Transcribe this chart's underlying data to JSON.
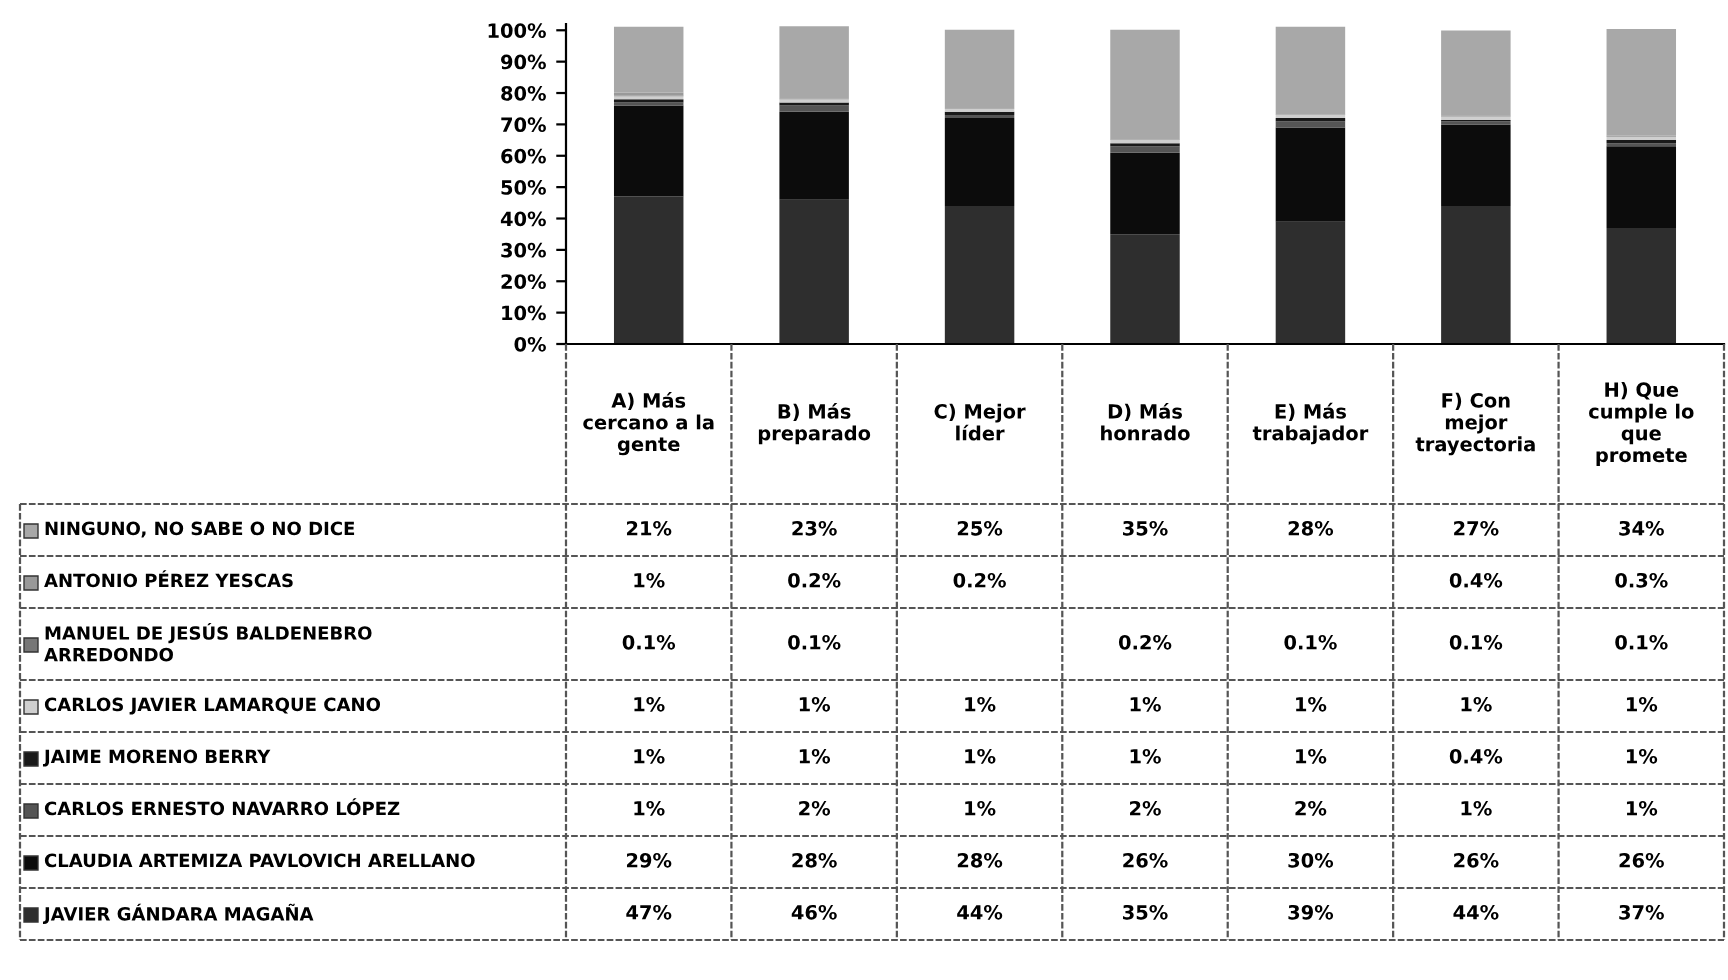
{
  "chart_data": {
    "type": "bar",
    "stacked": true,
    "categories": [
      "A) Más\ncercano a la\ngente",
      "B) Más\npreparado",
      "C) Mejor\nlíder",
      "D) Más\nhonrado",
      "E) Más\ntrabajador",
      "F) Con\nmejor\ntrayectoria",
      "H) Que\ncumple lo\nque\npromete"
    ],
    "ylim": [
      0,
      102
    ],
    "yticks": [
      {
        "value": 0,
        "label": "0%"
      },
      {
        "value": 10,
        "label": "10%"
      },
      {
        "value": 20,
        "label": "20%"
      },
      {
        "value": 30,
        "label": "30%"
      },
      {
        "value": 40,
        "label": "40%"
      },
      {
        "value": 50,
        "label": "50%"
      },
      {
        "value": 60,
        "label": "60%"
      },
      {
        "value": 70,
        "label": "70%"
      },
      {
        "value": 80,
        "label": "80%"
      },
      {
        "value": 90,
        "label": "90%"
      },
      {
        "value": 100,
        "label": "100%"
      }
    ],
    "grid": false,
    "legend": "left",
    "series": [
      {
        "name": "JAVIER GÁNDARA MAGAÑA",
        "color": "#2e2e2e",
        "values": [
          47,
          46,
          44,
          35,
          39,
          44,
          37
        ],
        "value_labels": [
          "47%",
          "46%",
          "44%",
          "35%",
          "39%",
          "44%",
          "37%"
        ]
      },
      {
        "name": "CLAUDIA ARTEMIZA PAVLOVICH ARELLANO",
        "color": "#0c0c0c",
        "values": [
          29,
          28,
          28,
          26,
          30,
          26,
          26
        ],
        "value_labels": [
          "29%",
          "28%",
          "28%",
          "26%",
          "30%",
          "26%",
          "26%"
        ]
      },
      {
        "name": "CARLOS ERNESTO NAVARRO LÓPEZ",
        "color": "#555555",
        "values": [
          1,
          2,
          1,
          2,
          2,
          1,
          1
        ],
        "value_labels": [
          "1%",
          "2%",
          "1%",
          "2%",
          "2%",
          "1%",
          "1%"
        ]
      },
      {
        "name": "JAIME MORENO BERRY",
        "color": "#1a1a1a",
        "values": [
          1,
          1,
          1,
          1,
          1,
          0.4,
          1
        ],
        "value_labels": [
          "1%",
          "1%",
          "1%",
          "1%",
          "1%",
          "0.4%",
          "1%"
        ]
      },
      {
        "name": "CARLOS JAVIER LAMARQUE CANO",
        "color": "#cfcfcf",
        "values": [
          1,
          1,
          1,
          1,
          1,
          1,
          1
        ],
        "value_labels": [
          "1%",
          "1%",
          "1%",
          "1%",
          "1%",
          "1%",
          "1%"
        ]
      },
      {
        "name": "MANUEL DE JESÚS BALDENEBRO\nARREDONDO",
        "color": "#777777",
        "values": [
          0.1,
          0.1,
          null,
          0.2,
          0.1,
          0.1,
          0.1
        ],
        "value_labels": [
          "0.1%",
          "0.1%",
          null,
          "0.2%",
          "0.1%",
          "0.1%",
          "0.1%"
        ]
      },
      {
        "name": "ANTONIO PÉREZ YESCAS",
        "color": "#999999",
        "values": [
          1,
          0.2,
          0.2,
          null,
          null,
          0.4,
          0.3
        ],
        "value_labels": [
          "1%",
          "0.2%",
          "0.2%",
          null,
          null,
          "0.4%",
          "0.3%"
        ]
      },
      {
        "name": "NINGUNO, NO SABE O NO DICE",
        "color": "#a8a8a8",
        "values": [
          21,
          23,
          25,
          35,
          28,
          27,
          34
        ],
        "value_labels": [
          "21%",
          "23%",
          "25%",
          "35%",
          "28%",
          "27%",
          "34%"
        ]
      }
    ]
  }
}
